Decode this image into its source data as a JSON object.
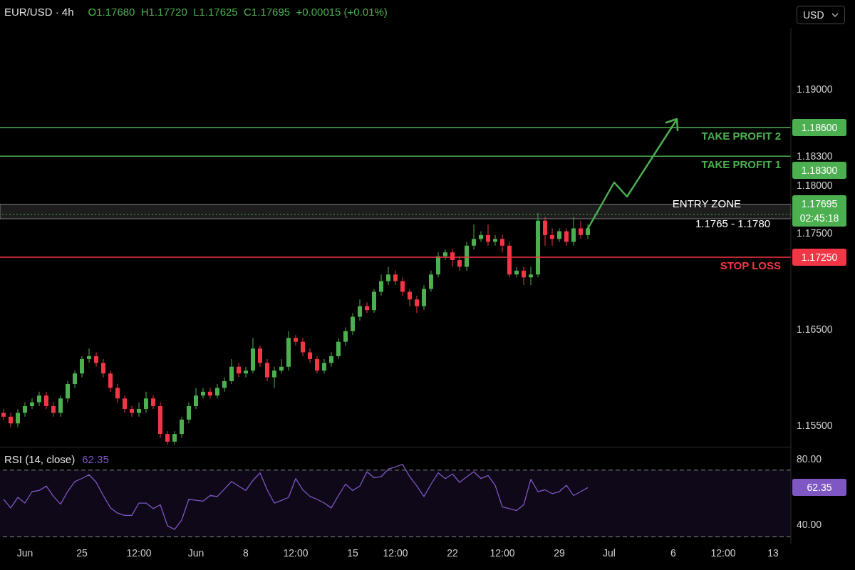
{
  "chart_data": [
    {
      "type": "candlestick",
      "title": "EUR/USD · 4h",
      "subtitle": "O1.17680  H1.17720  L1.17625  C1.17695  +0.00015 (+0.01%)",
      "categories": [
        null,
        null,
        null,
        null,
        null,
        null,
        null,
        null,
        null,
        null,
        null,
        null,
        null,
        null,
        null,
        null,
        null,
        null,
        null,
        null,
        null,
        null,
        null,
        null,
        null,
        null,
        null,
        null,
        null,
        null,
        null,
        null,
        null,
        null,
        null,
        null,
        null,
        null,
        null,
        null,
        null,
        null,
        null,
        null,
        null,
        null,
        null,
        null,
        null,
        null,
        null,
        null,
        null,
        null,
        null,
        null,
        null,
        null,
        null,
        null,
        null,
        null,
        null,
        null,
        null,
        null,
        null,
        null,
        null,
        null,
        null,
        null,
        null,
        null,
        null,
        null,
        null,
        null,
        null,
        null,
        null,
        null,
        null,
        null,
        null,
        null,
        null,
        null,
        null,
        null,
        null,
        null,
        null,
        null,
        null,
        null,
        null,
        null,
        null,
        null,
        null,
        null,
        null,
        null,
        null,
        null,
        null,
        null,
        null,
        null,
        null
      ],
      "ohlc": [
        [
          1.1563,
          1.1567,
          1.1556,
          1.1559
        ],
        [
          1.1559,
          1.1563,
          1.1548,
          1.1552
        ],
        [
          1.1552,
          1.1567,
          1.1548,
          1.1563
        ],
        [
          1.1563,
          1.1574,
          1.1559,
          1.157
        ],
        [
          1.157,
          1.1578,
          1.1567,
          1.1574
        ],
        [
          1.1574,
          1.1585,
          1.157,
          1.1581
        ],
        [
          1.1581,
          1.1585,
          1.1567,
          1.157
        ],
        [
          1.157,
          1.1574,
          1.1559,
          1.1563
        ],
        [
          1.1563,
          1.1581,
          1.1559,
          1.1578
        ],
        [
          1.1578,
          1.1596,
          1.1574,
          1.1593
        ],
        [
          1.1593,
          1.1607,
          1.1589,
          1.1604
        ],
        [
          1.1604,
          1.1622,
          1.16,
          1.1619
        ],
        [
          1.1619,
          1.163,
          1.1615,
          1.1622
        ],
        [
          1.1622,
          1.1626,
          1.1611,
          1.1615
        ],
        [
          1.1615,
          1.1619,
          1.16,
          1.1604
        ],
        [
          1.1604,
          1.1607,
          1.1585,
          1.1589
        ],
        [
          1.1589,
          1.1593,
          1.1574,
          1.1578
        ],
        [
          1.1578,
          1.1581,
          1.1563,
          1.1567
        ],
        [
          1.1567,
          1.157,
          1.1559,
          1.1563
        ],
        [
          1.1563,
          1.1574,
          1.1559,
          1.1567
        ],
        [
          1.1567,
          1.1585,
          1.1563,
          1.1578
        ],
        [
          1.1578,
          1.1581,
          1.1567,
          1.157
        ],
        [
          1.157,
          1.1574,
          1.1537,
          1.1541
        ],
        [
          1.1541,
          1.1544,
          1.153,
          1.1533
        ],
        [
          1.1533,
          1.1544,
          1.153,
          1.1541
        ],
        [
          1.1541,
          1.1559,
          1.1537,
          1.1556
        ],
        [
          1.1556,
          1.1574,
          1.1552,
          1.157
        ],
        [
          1.157,
          1.1589,
          1.1567,
          1.1581
        ],
        [
          1.1581,
          1.1589,
          1.1578,
          1.1585
        ],
        [
          1.1585,
          1.1589,
          1.1578,
          1.1581
        ],
        [
          1.1581,
          1.1593,
          1.1578,
          1.1589
        ],
        [
          1.1589,
          1.16,
          1.1585,
          1.1596
        ],
        [
          1.1596,
          1.1619,
          1.1593,
          1.1611
        ],
        [
          1.1611,
          1.1615,
          1.16,
          1.1604
        ],
        [
          1.1604,
          1.1611,
          1.16,
          1.1607
        ],
        [
          1.1607,
          1.1641,
          1.1604,
          1.163
        ],
        [
          1.163,
          1.1633,
          1.1611,
          1.1615
        ],
        [
          1.1615,
          1.1619,
          1.1596,
          1.16
        ],
        [
          1.16,
          1.1611,
          1.1589,
          1.1607
        ],
        [
          1.1607,
          1.1619,
          1.1604,
          1.1611
        ],
        [
          1.1611,
          1.1648,
          1.1607,
          1.1641
        ],
        [
          1.1641,
          1.1644,
          1.1633,
          1.1637
        ],
        [
          1.1637,
          1.1641,
          1.1622,
          1.1626
        ],
        [
          1.1626,
          1.163,
          1.1615,
          1.1619
        ],
        [
          1.1619,
          1.1622,
          1.1604,
          1.1607
        ],
        [
          1.1607,
          1.1619,
          1.1604,
          1.1615
        ],
        [
          1.1615,
          1.1626,
          1.1611,
          1.1622
        ],
        [
          1.1622,
          1.1641,
          1.1619,
          1.1637
        ],
        [
          1.1637,
          1.1652,
          1.1633,
          1.1648
        ],
        [
          1.1648,
          1.1667,
          1.1644,
          1.1663
        ],
        [
          1.1663,
          1.1681,
          1.1659,
          1.1674
        ],
        [
          1.1674,
          1.1678,
          1.1667,
          1.167
        ],
        [
          1.167,
          1.1692,
          1.1667,
          1.1689
        ],
        [
          1.1689,
          1.1707,
          1.1685,
          1.17
        ],
        [
          1.17,
          1.1715,
          1.1696,
          1.1707
        ],
        [
          1.1707,
          1.1711,
          1.1696,
          1.17
        ],
        [
          1.17,
          1.1704,
          1.1685,
          1.1689
        ],
        [
          1.1689,
          1.1692,
          1.1674,
          1.1681
        ],
        [
          1.1681,
          1.1685,
          1.1667,
          1.1674
        ],
        [
          1.1674,
          1.1696,
          1.167,
          1.1692
        ],
        [
          1.1692,
          1.1711,
          1.1689,
          1.1707
        ],
        [
          1.1707,
          1.173,
          1.1704,
          1.1726
        ],
        [
          1.1726,
          1.1733,
          1.1722,
          1.173
        ],
        [
          1.173,
          1.1733,
          1.1715,
          1.1722
        ],
        [
          1.1722,
          1.1726,
          1.1711,
          1.1715
        ],
        [
          1.1715,
          1.1741,
          1.1711,
          1.1737
        ],
        [
          1.1737,
          1.1759,
          1.1733,
          1.1744
        ],
        [
          1.1744,
          1.1752,
          1.1741,
          1.1748
        ],
        [
          1.1748,
          1.1759,
          1.1737,
          1.1741
        ],
        [
          1.1741,
          1.1748,
          1.1737,
          1.1744
        ],
        [
          1.1744,
          1.1748,
          1.173,
          1.1737
        ],
        [
          1.1737,
          1.1741,
          1.1704,
          1.1707
        ],
        [
          1.1707,
          1.1715,
          1.1704,
          1.1711
        ],
        [
          1.1711,
          1.1715,
          1.1696,
          1.1704
        ],
        [
          1.1704,
          1.1715,
          1.1696,
          1.1707
        ],
        [
          1.1707,
          1.1771,
          1.1704,
          1.1763
        ],
        [
          1.1763,
          1.1767,
          1.1737,
          1.1748
        ],
        [
          1.1748,
          1.1755,
          1.1737,
          1.1744
        ],
        [
          1.1744,
          1.1755,
          1.1741,
          1.1752
        ],
        [
          1.1752,
          1.1755,
          1.1737,
          1.1741
        ],
        [
          1.1741,
          1.1767,
          1.1737,
          1.1755
        ],
        [
          1.1755,
          1.1763,
          1.1744,
          1.1748
        ],
        [
          1.1748,
          1.1759,
          1.1744,
          1.1755
        ],
        null,
        null,
        null,
        null,
        null,
        null,
        null,
        null,
        null,
        null,
        null,
        null,
        null,
        null,
        null,
        null,
        null,
        null,
        null,
        null,
        null,
        null,
        null,
        null,
        null,
        null,
        null,
        null
      ],
      "colors": [
        "#f23645",
        "#f23645",
        "#4caf50",
        "#4caf50",
        "#4caf50",
        "#4caf50",
        "#f23645",
        "#f23645",
        "#4caf50",
        "#4caf50",
        "#4caf50",
        "#4caf50",
        "#4caf50",
        "#f23645",
        "#f23645",
        "#f23645",
        "#f23645",
        "#f23645",
        "#f23645",
        "#4caf50",
        "#4caf50",
        "#f23645",
        "#f23645",
        "#f23645",
        "#4caf50",
        "#4caf50",
        "#4caf50",
        "#4caf50",
        "#4caf50",
        "#f23645",
        "#4caf50",
        "#4caf50",
        "#4caf50",
        "#f23645",
        "#4caf50",
        "#4caf50",
        "#f23645",
        "#f23645",
        "#4caf50",
        "#4caf50",
        "#4caf50",
        "#f23645",
        "#f23645",
        "#f23645",
        "#f23645",
        "#4caf50",
        "#4caf50",
        "#4caf50",
        "#4caf50",
        "#4caf50",
        "#4caf50",
        "#f23645",
        "#4caf50",
        "#4caf50",
        "#4caf50",
        "#f23645",
        "#f23645",
        "#f23645",
        "#f23645",
        "#4caf50",
        "#4caf50",
        "#4caf50",
        "#4caf50",
        "#f23645",
        "#f23645",
        "#4caf50",
        "#4caf50",
        "#4caf50",
        "#f23645",
        "#4caf50",
        "#f23645",
        "#f23645",
        "#4caf50",
        "#f23645",
        "#4caf50",
        "#4caf50",
        "#f23645",
        "#f23645",
        "#4caf50",
        "#f23645",
        "#4caf50",
        "#f23645",
        "#4caf50",
        null,
        null,
        null,
        null,
        null,
        null,
        null,
        null,
        null,
        null,
        null,
        null,
        null,
        null,
        null,
        null,
        null,
        null,
        null,
        null,
        null,
        null,
        null,
        null,
        null,
        null,
        null,
        null
      ],
      "ylim": [
        1.1527,
        1.1963
      ],
      "yticks": [
        {
          "value": 1.19,
          "label": "1.19000"
        },
        {
          "value": 1.183,
          "label": "1.18300"
        },
        {
          "value": 1.18,
          "label": "1.18000"
        },
        {
          "value": 1.175,
          "label": "1.17500"
        },
        {
          "value": 1.165,
          "label": "1.16500"
        },
        {
          "value": 1.155,
          "label": "1.15500"
        }
      ],
      "tick_labels": "y",
      "ref_lines": [
        {
          "axis": "y",
          "value": 1.186,
          "label": "TAKE PROFIT 2",
          "color": "#4caf50"
        },
        {
          "axis": "y",
          "value": 1.183,
          "label": "TAKE PROFIT 1",
          "color": "#4caf50"
        },
        {
          "axis": "y",
          "value": 1.17695,
          "label": null,
          "color": "#4caf50",
          "line_style": "dotted"
        },
        {
          "axis": "y",
          "value": 1.1725,
          "label": "STOP LOSS",
          "color": "#f23645"
        }
      ],
      "bands": [
        {
          "axis": "y",
          "from": 1.1765,
          "to": 1.178,
          "label": "ENTRY ZONE",
          "color": "#9e9e9e"
        }
      ],
      "annotations": [
        "1.18600",
        "1.18300",
        "1.17695\n02:45:18",
        "1.17250",
        {
          "text": "1.1765 - 1.1780",
          "y": 1.1765
        },
        "USD"
      ]
    },
    {
      "type": "line",
      "title": "RSI (14, close)",
      "subtitle": "62.35",
      "marker": "none",
      "categories": [
        null,
        null,
        null,
        "Jun",
        null,
        null,
        null,
        null,
        null,
        null,
        null,
        "25",
        null,
        null,
        null,
        null,
        null,
        null,
        null,
        "12:00",
        null,
        null,
        null,
        null,
        null,
        null,
        null,
        "Jun",
        null,
        null,
        null,
        null,
        null,
        null,
        "8",
        null,
        null,
        null,
        null,
        null,
        null,
        "12:00",
        null,
        null,
        null,
        null,
        null,
        null,
        null,
        "15",
        null,
        null,
        null,
        null,
        null,
        "12:00",
        null,
        null,
        null,
        null,
        null,
        null,
        null,
        "22",
        null,
        null,
        null,
        null,
        null,
        null,
        "12:00",
        null,
        null,
        null,
        null,
        null,
        null,
        null,
        "29",
        null,
        null,
        null,
        null,
        null,
        null,
        "Jul",
        null,
        null,
        null,
        null,
        null,
        null,
        null,
        null,
        "6",
        null,
        null,
        null,
        null,
        null,
        null,
        "12:00",
        null,
        null,
        null,
        null,
        null,
        null,
        "13",
        null,
        null
      ],
      "series": [
        {
          "color": "#7e57c2",
          "values": [
            55.2,
            49.9,
            56.4,
            52.9,
            59.9,
            60.6,
            63.3,
            57.0,
            52.2,
            60.0,
            66.1,
            68.0,
            70.3,
            65.6,
            57.5,
            50.0,
            46.7,
            45.3,
            45.3,
            52.9,
            52.9,
            49.5,
            51.8,
            39.0,
            36.7,
            42.5,
            55.2,
            54.6,
            54.1,
            57.5,
            56.9,
            61.5,
            66.1,
            63.3,
            60.6,
            66.8,
            71.4,
            61.0,
            52.9,
            54.5,
            56.4,
            67.9,
            61.0,
            57.0,
            55.2,
            52.9,
            49.9,
            57.5,
            64.5,
            60.6,
            63.3,
            72.1,
            68.4,
            69.1,
            73.7,
            75.0,
            76.7,
            69.1,
            63.3,
            56.9,
            64.5,
            71.4,
            67.9,
            70.7,
            65.6,
            69.0,
            72.1,
            67.9,
            69.8,
            63.8,
            50.6,
            49.5,
            48.3,
            51.8,
            67.5,
            59.9,
            61.0,
            58.7,
            59.9,
            63.8,
            57.5,
            59.9,
            62.35,
            null,
            null,
            null,
            null,
            null,
            null,
            null,
            null,
            null,
            null,
            null,
            null,
            null,
            null,
            null,
            null,
            null,
            null,
            null,
            null,
            null,
            null,
            null,
            null,
            null,
            null,
            null,
            null
          ]
        }
      ],
      "ylim": [
        28,
        87
      ],
      "yticks": [
        {
          "value": 80,
          "label": "80.00"
        },
        {
          "value": 40,
          "label": "40.00"
        }
      ],
      "ref_lines": [
        {
          "axis": "y",
          "value": 73.1,
          "color": "#8a8a8a",
          "line_style": "dashed"
        },
        {
          "axis": "y",
          "value": 32.2,
          "color": "#8a8a8a",
          "line_style": "dashed"
        }
      ],
      "bands": [
        {
          "axis": "y",
          "from": 32.2,
          "to": 73.1,
          "color": "#2a1748"
        }
      ],
      "annotations": [
        "62.35"
      ]
    }
  ]
}
